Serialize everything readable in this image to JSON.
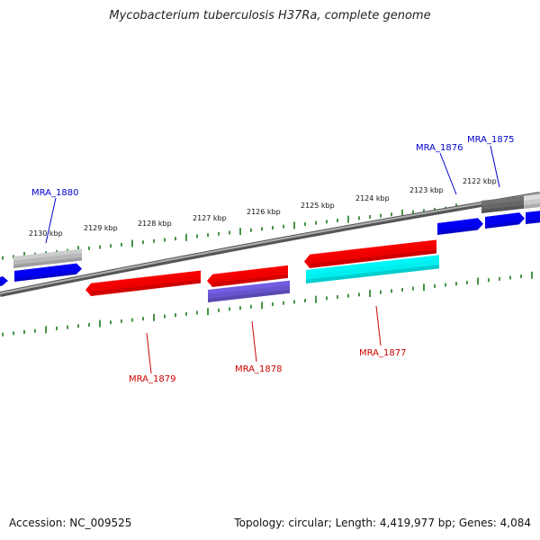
{
  "title": "Mycobacterium tuberculosis H37Ra, complete genome",
  "footer": {
    "accession": "Accession: NC_009525",
    "summary": "Topology: circular; Length: 4,419,977 bp; Genes: 4,084"
  },
  "colors": {
    "backbone": "#8a8a8a",
    "tick": "#1a7a1a",
    "label_top": "#0000cc",
    "label_bottom": "#cc0000"
  },
  "scale_labels": [
    {
      "id": "2122",
      "text": "2122 kbp"
    },
    {
      "id": "2123",
      "text": "2123 kbp"
    },
    {
      "id": "2124",
      "text": "2124 kbp"
    },
    {
      "id": "2125",
      "text": "2125 kbp"
    },
    {
      "id": "2126",
      "text": "2126 kbp"
    },
    {
      "id": "2127",
      "text": "2127 kbp"
    },
    {
      "id": "2128",
      "text": "2128 kbp"
    },
    {
      "id": "2129",
      "text": "2129 kbp"
    },
    {
      "id": "2130",
      "text": "2130 kbp"
    }
  ],
  "gene_labels": [
    {
      "id": "MRA_1875",
      "text": "MRA_1875",
      "strand": "top"
    },
    {
      "id": "MRA_1876",
      "text": "MRA_1876",
      "strand": "top"
    },
    {
      "id": "MRA_1880",
      "text": "MRA_1880",
      "strand": "top"
    },
    {
      "id": "MRA_1877",
      "text": "MRA_1877",
      "strand": "bottom"
    },
    {
      "id": "MRA_1878",
      "text": "MRA_1878",
      "strand": "bottom"
    },
    {
      "id": "MRA_1879",
      "text": "MRA_1879",
      "strand": "bottom"
    }
  ],
  "features": [
    {
      "id": "f-top-left-edge",
      "color": "#0000ee"
    },
    {
      "id": "f-1880-blue",
      "color": "#0000ee"
    },
    {
      "id": "f-1880-grey",
      "color": "#b8b8b8"
    },
    {
      "id": "f-1876-blue",
      "color": "#0000ee"
    },
    {
      "id": "f-1875-blue",
      "color": "#0000ee"
    },
    {
      "id": "f-1875-dark",
      "color": "#666666"
    },
    {
      "id": "f-1875-light",
      "color": "#c8c8c8"
    },
    {
      "id": "f-right-edge-blue",
      "color": "#0000ee"
    },
    {
      "id": "f-1879-red",
      "color": "#ee0000"
    },
    {
      "id": "f-1878-red",
      "color": "#ee0000"
    },
    {
      "id": "f-1878-purple",
      "color": "#6655cc"
    },
    {
      "id": "f-1877-red",
      "color": "#ee0000"
    },
    {
      "id": "f-1877-cyan",
      "color": "#00eeee"
    }
  ]
}
